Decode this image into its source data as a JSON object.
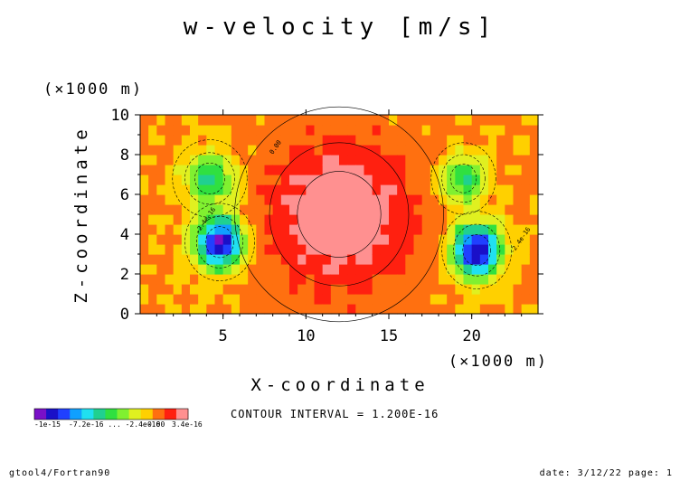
{
  "chart_data": {
    "type": "heatmap",
    "title": "w-velocity [m/s]",
    "xlabel": "X-coordinate",
    "ylabel": "Z-coordinate",
    "x_unit": "(×1000 m)",
    "y_unit": "(×1000 m)",
    "xlim": [
      0,
      24
    ],
    "ylim": [
      0,
      10
    ],
    "x_ticks": [
      5,
      10,
      15,
      20
    ],
    "x_tick_labels": [
      "5",
      "10",
      "15",
      "20"
    ],
    "y_ticks": [
      0,
      2,
      4,
      6,
      8,
      10
    ],
    "y_tick_labels": [
      "0",
      "2",
      "4",
      "6",
      "8",
      "10"
    ],
    "grid": false,
    "value_min": -1e-15,
    "value_max": 3.4e-16,
    "contour_interval": "CONTOUR INTERVAL = 1.200E-16",
    "colorbar": {
      "label_left": "-1e-15",
      "label_mid_raw": "-7.2e-16 ... -2.4e-16",
      "label_zero": "0.00",
      "label_right": "3.4e-16",
      "colors": [
        "#7a10c8",
        "#1a10c8",
        "#2040ff",
        "#10a0ff",
        "#20e0f0",
        "#20d090",
        "#30e040",
        "#80f030",
        "#e0f020",
        "#ffd000",
        "#ff7010",
        "#ff2010",
        "#ff9090"
      ]
    },
    "features": [
      {
        "kind": "central-updraft",
        "x": 12,
        "z": 5,
        "sx": 4.2,
        "sz": 3.6,
        "value": 3.2e-16
      },
      {
        "kind": "left-downdraft",
        "x": 4.8,
        "z": 3.6,
        "sx": 1.4,
        "sz": 1.3,
        "value": -9.5e-16
      },
      {
        "kind": "left-downdraft-upper",
        "x": 4.2,
        "z": 6.8,
        "sx": 1.5,
        "sz": 1.3,
        "value": -4.5e-16
      },
      {
        "kind": "right-downdraft",
        "x": 20.3,
        "z": 3.2,
        "sx": 1.4,
        "sz": 1.3,
        "value": -9.8e-16
      },
      {
        "kind": "right-downdraft-upper",
        "x": 19.5,
        "z": 6.8,
        "sx": 1.3,
        "sz": 1.2,
        "value": -4.5e-16
      }
    ]
  },
  "labels": {
    "contour_inline": [
      "0.00",
      "-2.4e-16",
      "-2.4e-16"
    ]
  },
  "footer": {
    "left": "gtool4/Fortran90",
    "right": "date: 3/12/22 page: 1"
  }
}
